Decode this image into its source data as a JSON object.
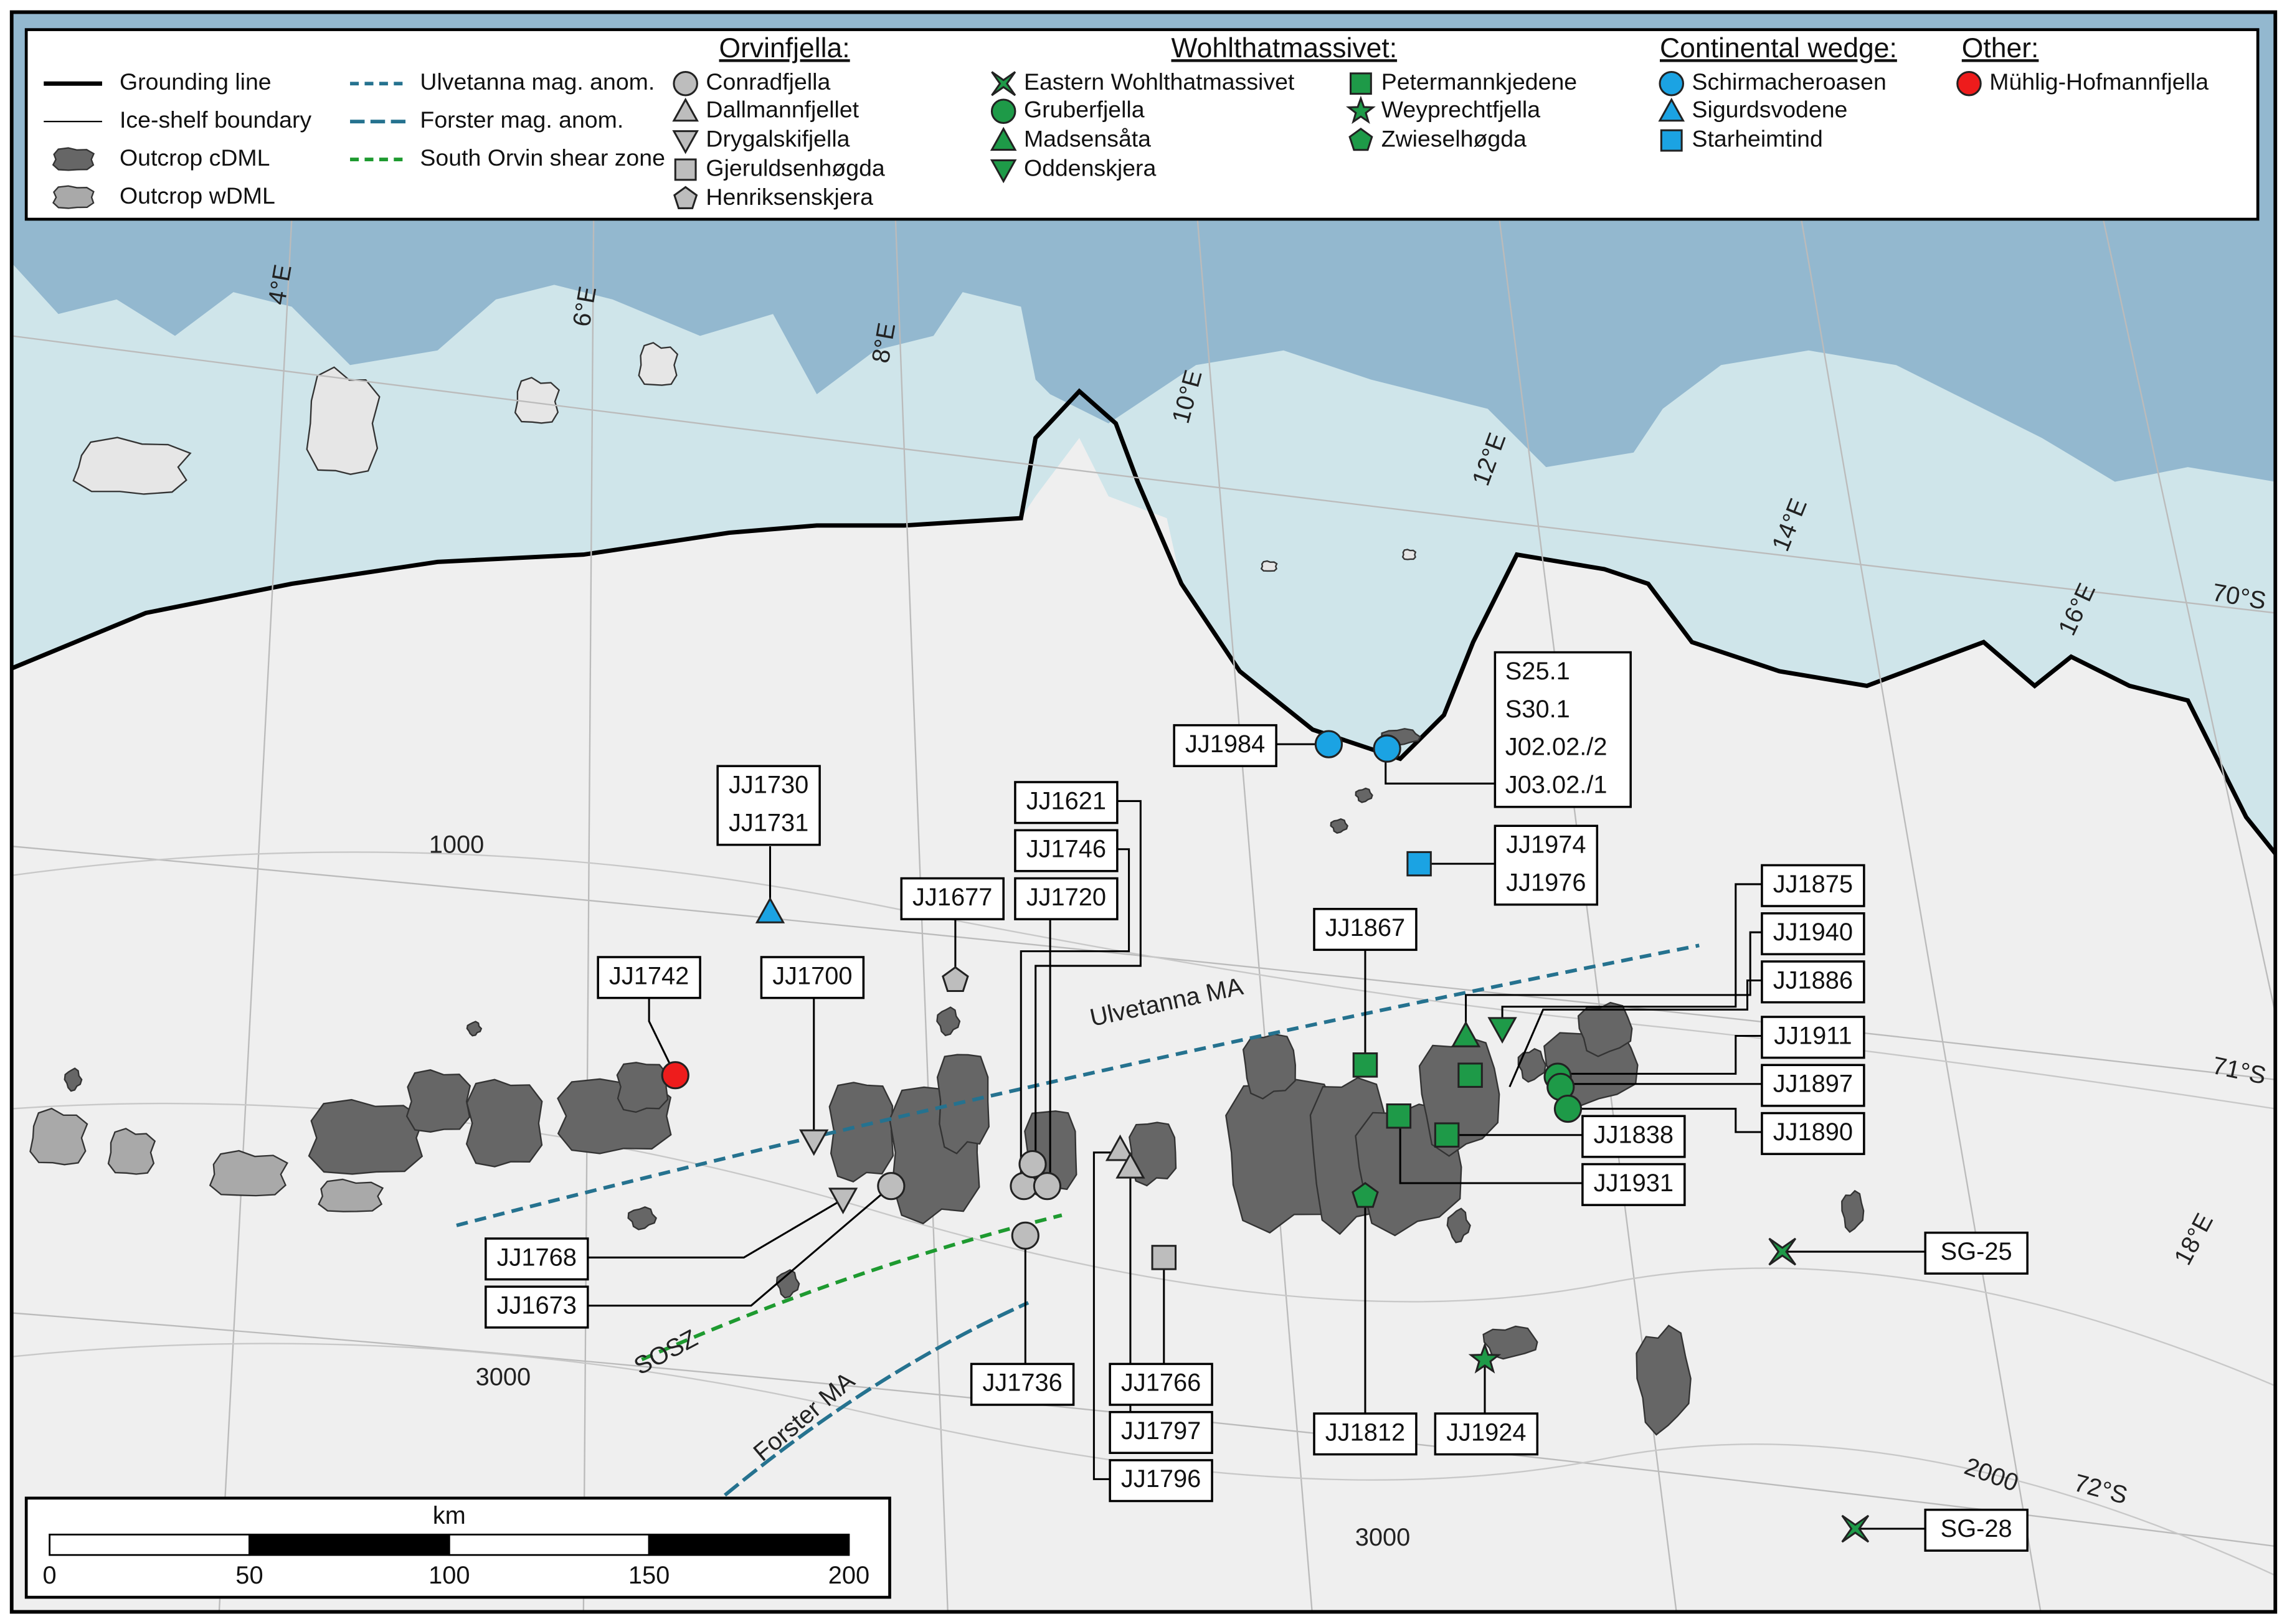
{
  "legend": {
    "lines": [
      "Grounding line",
      "Ice-shelf boundary",
      "Outcrop cDML",
      "Outcrop wDML",
      "Ulvetanna mag. anom.",
      "Forster mag. anom.",
      "South Orvin shear zone"
    ],
    "groups": [
      {
        "title": "Orvinfjella:",
        "items": [
          "Conradfjella",
          "Dallmannfjellet",
          "Drygalskifjella",
          "Gjeruldsenhøgda",
          "Henriksenskjera"
        ]
      },
      {
        "title": "Wohlthatmassivet:",
        "items": [
          "Eastern Wohlthatmassivet",
          "Gruberfjella",
          "Madsensåta",
          "Oddenskjera",
          "Petermannkjedene",
          "Weyprechtfjella",
          "Zwieselhøgda"
        ]
      },
      {
        "title": "Continental wedge:",
        "items": [
          "Schirmacheroasen",
          "Sigurdsvodene",
          "Starheimtind"
        ]
      },
      {
        "title": "Other:",
        "items": [
          "Mühlig-Hofmannfjella"
        ]
      }
    ]
  },
  "graticule": {
    "longitudes": [
      "4°E",
      "6°E",
      "8°E",
      "10°E",
      "12°E",
      "14°E",
      "16°E",
      "18°E"
    ],
    "latitudes": [
      "70°S",
      "71°S",
      "72°S"
    ]
  },
  "contours": [
    "1000",
    "3000",
    "3000",
    "2000"
  ],
  "features": [
    "Ulvetanna MA",
    "SOSZ",
    "Forster MA"
  ],
  "samples": [
    {
      "label": [
        "JJ1984"
      ]
    },
    {
      "label": [
        "S25.1",
        "S30.1",
        "J02.02./2",
        "J03.02./1"
      ]
    },
    {
      "label": [
        "JJ1974",
        "JJ1976"
      ]
    },
    {
      "label": [
        "JJ1730",
        "JJ1731"
      ]
    },
    {
      "label": [
        "JJ1621"
      ]
    },
    {
      "label": [
        "JJ1746"
      ]
    },
    {
      "label": [
        "JJ1720"
      ]
    },
    {
      "label": [
        "JJ1677"
      ]
    },
    {
      "label": [
        "JJ1742"
      ]
    },
    {
      "label": [
        "JJ1700"
      ]
    },
    {
      "label": [
        "JJ1768"
      ]
    },
    {
      "label": [
        "JJ1673"
      ]
    },
    {
      "label": [
        "JJ1736"
      ]
    },
    {
      "label": [
        "JJ1766"
      ]
    },
    {
      "label": [
        "JJ1797"
      ]
    },
    {
      "label": [
        "JJ1796"
      ]
    },
    {
      "label": [
        "JJ1867"
      ]
    },
    {
      "label": [
        "JJ1812"
      ]
    },
    {
      "label": [
        "JJ1924"
      ]
    },
    {
      "label": [
        "JJ1875"
      ]
    },
    {
      "label": [
        "JJ1940"
      ]
    },
    {
      "label": [
        "JJ1886"
      ]
    },
    {
      "label": [
        "JJ1911"
      ]
    },
    {
      "label": [
        "JJ1897"
      ]
    },
    {
      "label": [
        "JJ1890"
      ]
    },
    {
      "label": [
        "JJ1838"
      ]
    },
    {
      "label": [
        "JJ1931"
      ]
    },
    {
      "label": [
        "SG-25"
      ]
    },
    {
      "label": [
        "SG-28"
      ]
    }
  ],
  "scale_bar": {
    "title": "km",
    "ticks": [
      0,
      50,
      100,
      150,
      200
    ]
  }
}
